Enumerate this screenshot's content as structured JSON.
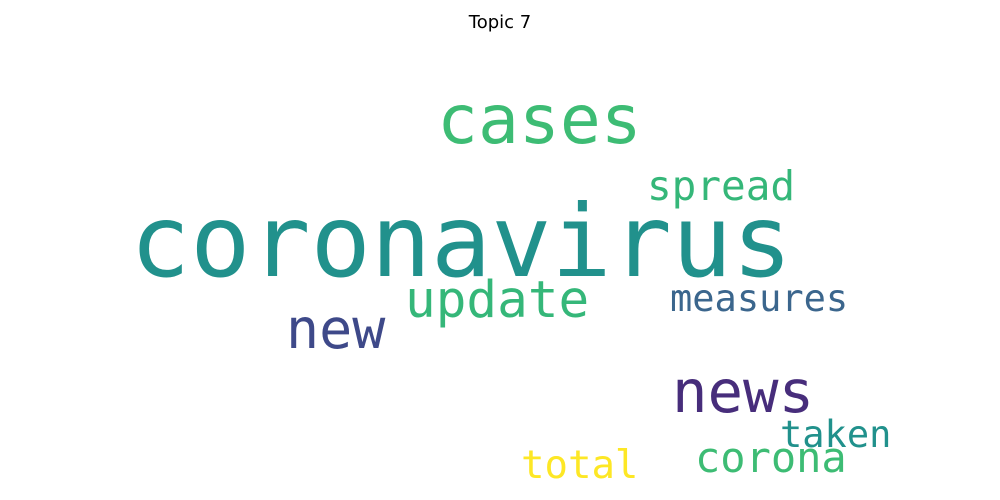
{
  "title": "Topic 7",
  "words": {
    "coronavirus": {
      "text": "coronavirus",
      "color": "#21918c"
    },
    "cases": {
      "text": "cases",
      "color": "#3dbc74"
    },
    "spread": {
      "text": "spread",
      "color": "#35b779"
    },
    "update": {
      "text": "update",
      "color": "#35b779"
    },
    "new": {
      "text": "new",
      "color": "#3e4989"
    },
    "measures": {
      "text": "measures",
      "color": "#3b668d"
    },
    "news": {
      "text": "news",
      "color": "#472d7b"
    },
    "taken": {
      "text": "taken",
      "color": "#21918c"
    },
    "corona": {
      "text": "corona",
      "color": "#3dbc74"
    },
    "total": {
      "text": "total",
      "color": "#fde725"
    }
  }
}
